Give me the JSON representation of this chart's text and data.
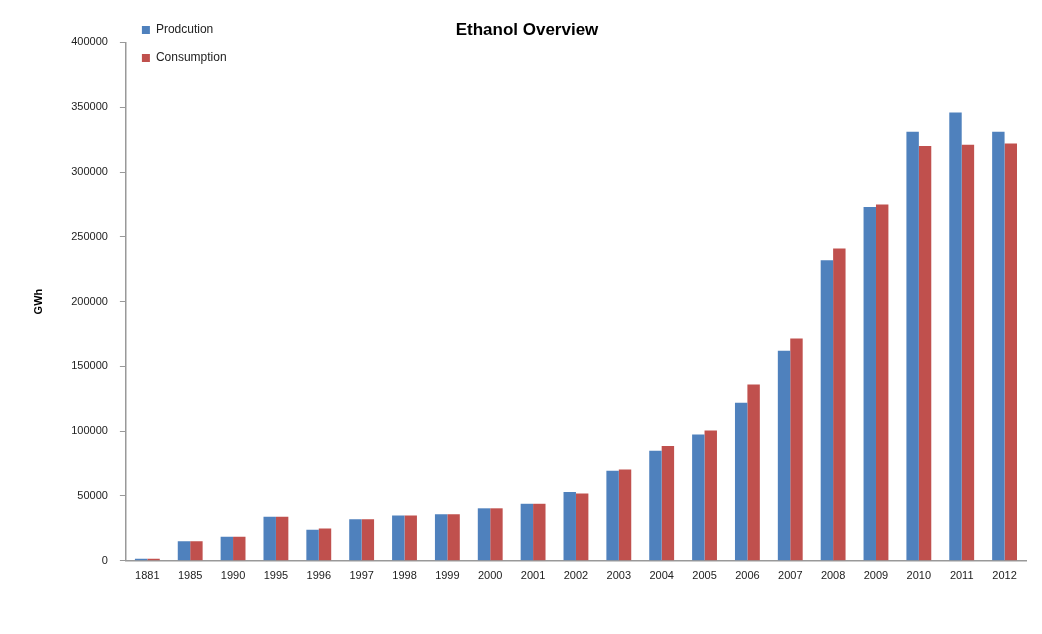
{
  "chart_data": {
    "type": "bar",
    "title": "Ethanol Overview",
    "ylabel": "GWh",
    "categories": [
      "1881",
      "1985",
      "1990",
      "1995",
      "1996",
      "1997",
      "1998",
      "1999",
      "2000",
      "2001",
      "2002",
      "2003",
      "2004",
      "2005",
      "2006",
      "2007",
      "2008",
      "2009",
      "2010",
      "2011",
      "2012"
    ],
    "series": [
      {
        "name": "Prodcution",
        "color": "#4f81bd",
        "values": [
          1500,
          15000,
          18500,
          34000,
          24000,
          32000,
          35000,
          36000,
          40500,
          44000,
          53000,
          69500,
          85000,
          97500,
          122000,
          162000,
          232000,
          273000,
          331000,
          346000,
          331000
        ]
      },
      {
        "name": "Consumption",
        "color": "#c0504d",
        "values": [
          1500,
          15000,
          18500,
          34000,
          25000,
          32000,
          35000,
          36000,
          40500,
          44000,
          52000,
          70500,
          88500,
          100500,
          136000,
          171500,
          241000,
          275000,
          320000,
          321000,
          322000
        ]
      }
    ],
    "ylim": [
      0,
      400000
    ],
    "yticks": [
      0,
      50000,
      100000,
      150000,
      200000,
      250000,
      300000,
      350000,
      400000
    ],
    "grid": false,
    "legend": "top left"
  }
}
